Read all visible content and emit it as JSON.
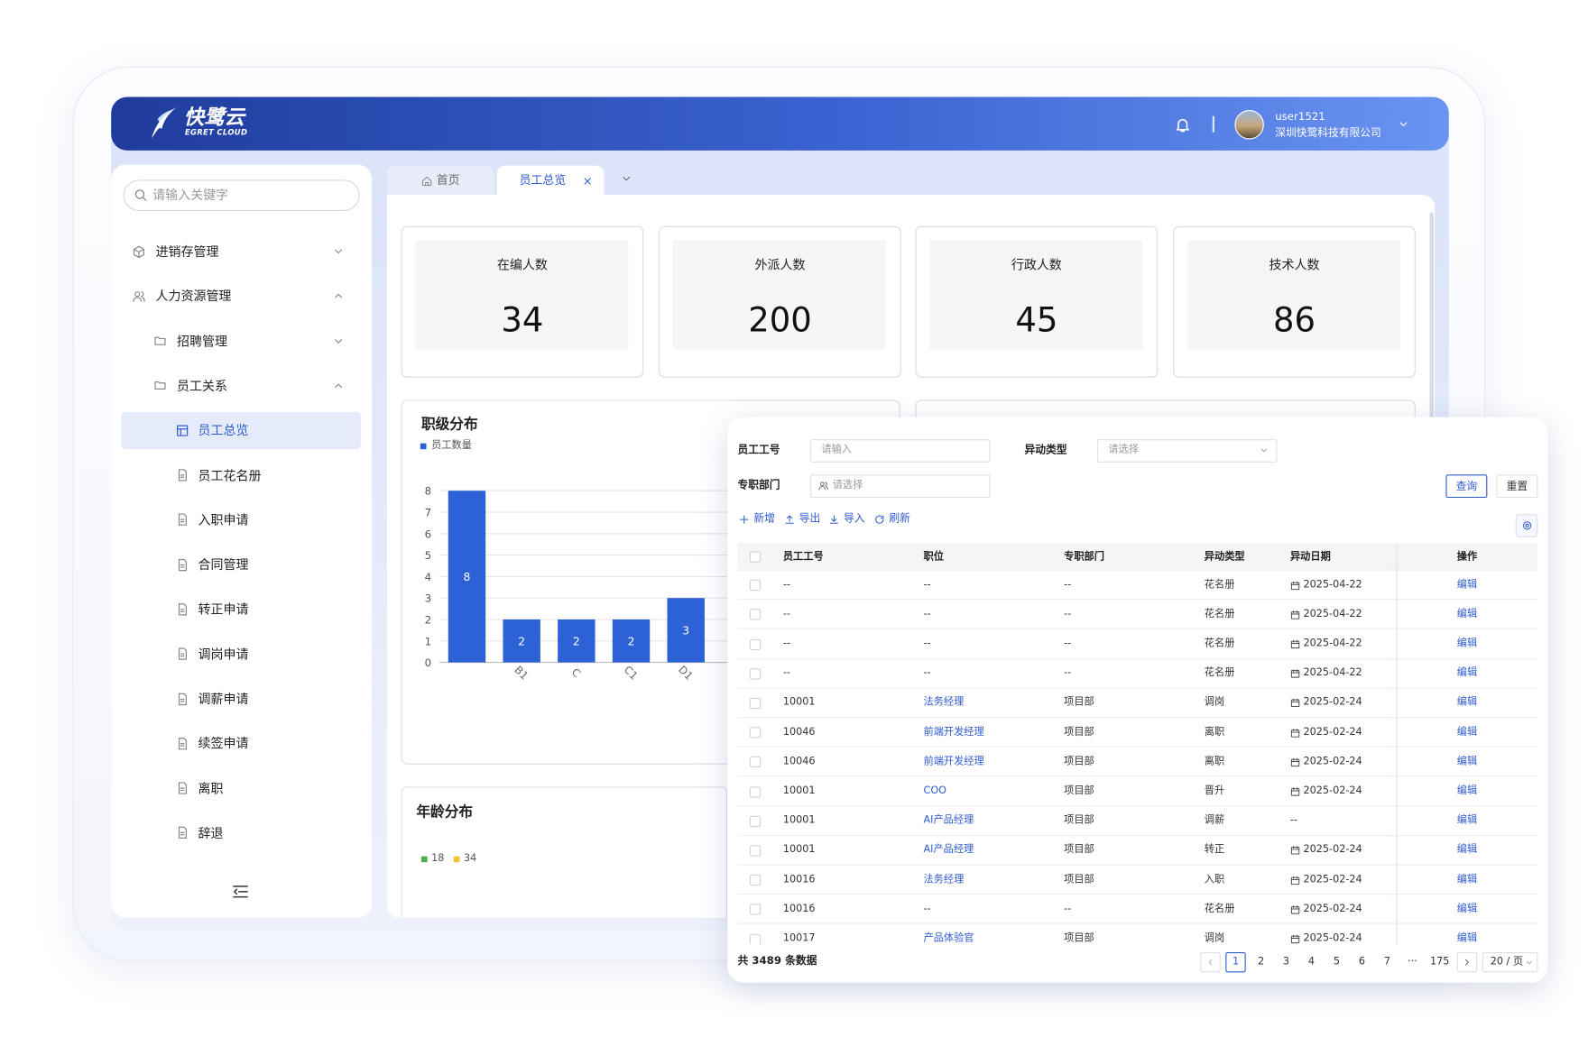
{
  "header": {
    "logo": "快鹭云",
    "logo_sub": "EGRET CLOUD",
    "user_name": "user1521",
    "company": "深圳快鹭科技有限公司"
  },
  "sidebar": {
    "search_placeholder": "请输入关键字",
    "menu": [
      {
        "label": "进销存管理",
        "level": 1,
        "open": false
      },
      {
        "label": "人力资源管理",
        "level": 1,
        "open": true
      },
      {
        "label": "招聘管理",
        "level": 2,
        "open": false
      },
      {
        "label": "员工关系",
        "level": 2,
        "open": true
      },
      {
        "label": "员工总览",
        "level": 3,
        "active": true
      },
      {
        "label": "员工花名册",
        "level": 3
      },
      {
        "label": "入职申请",
        "level": 3
      },
      {
        "label": "合同管理",
        "level": 3
      },
      {
        "label": "转正申请",
        "level": 3
      },
      {
        "label": "调岗申请",
        "level": 3
      },
      {
        "label": "调薪申请",
        "level": 3
      },
      {
        "label": "续签申请",
        "level": 3
      },
      {
        "label": "离职",
        "level": 3
      },
      {
        "label": "辞退",
        "level": 3
      }
    ]
  },
  "tabs": [
    {
      "label": "首页"
    },
    {
      "label": "员工总览",
      "active": true
    }
  ],
  "stat_cards": [
    {
      "label": "在编人数",
      "value": 34
    },
    {
      "label": "外派人数",
      "value": 200
    },
    {
      "label": "行政人数",
      "value": 45
    },
    {
      "label": "技术人数",
      "value": 86
    }
  ],
  "chart_data": [
    {
      "type": "bar",
      "title": "职级分布",
      "categories": [
        null,
        "B1",
        "C",
        "C1",
        "D1"
      ],
      "series": [
        {
          "name": "员工数量",
          "color": "#2d62d6",
          "values": [
            8,
            2,
            2,
            2,
            3
          ]
        }
      ],
      "ylim": [
        0,
        8
      ],
      "yticks": [
        0,
        1,
        2,
        3,
        4,
        5,
        6,
        7,
        8
      ],
      "grid": true
    },
    {
      "type": "pie",
      "title": "年龄分布",
      "categories": [
        "18",
        "34"
      ],
      "colors": [
        "#4caf50",
        "#f4c430"
      ]
    }
  ],
  "table_panel": {
    "filters": [
      {
        "label": "员工工号",
        "placeholder": "请输入"
      },
      {
        "label": "异动类型",
        "placeholder": "请选择"
      },
      {
        "label": "专职部门",
        "placeholder": "请选择"
      }
    ],
    "buttons": [
      "查询",
      "重置"
    ],
    "toolbar": [
      "新增",
      "导出",
      "导入",
      "刷新"
    ],
    "columns": [
      "员工工号",
      "职位",
      "专职部门",
      "异动类型",
      "异动日期",
      "操作"
    ],
    "rows": [
      [
        "--",
        "--",
        "--",
        "花名册",
        "2025-04-22",
        "编辑"
      ],
      [
        "--",
        "--",
        "--",
        "花名册",
        "2025-04-22",
        "编辑"
      ],
      [
        "--",
        "--",
        "--",
        "花名册",
        "2025-04-22",
        "编辑"
      ],
      [
        "--",
        "--",
        "--",
        "花名册",
        "2025-04-22",
        "编辑"
      ],
      [
        "10001",
        "法务经理",
        "项目部",
        "调岗",
        "2025-02-24",
        "编辑"
      ],
      [
        "10046",
        "前端开发经理",
        "项目部",
        "离职",
        "2025-02-24",
        "编辑"
      ],
      [
        "10046",
        "前端开发经理",
        "项目部",
        "离职",
        "2025-02-24",
        "编辑"
      ],
      [
        "10001",
        "COO",
        "项目部",
        "晋升",
        "2025-02-24",
        "编辑"
      ],
      [
        "10001",
        "AI产品经理",
        "项目部",
        "调薪",
        "--",
        "编辑"
      ],
      [
        "10001",
        "AI产品经理",
        "项目部",
        "转正",
        "2025-02-24",
        "编辑"
      ],
      [
        "10016",
        "法务经理",
        "项目部",
        "入职",
        "2025-02-24",
        "编辑"
      ],
      [
        "10016",
        "--",
        "--",
        "花名册",
        "2025-02-24",
        "编辑"
      ],
      [
        "10017",
        "产品体验官",
        "项目部",
        "调岗",
        "2025-02-24",
        "编辑"
      ]
    ],
    "total": "共 3489 条数据",
    "pages": [
      "1",
      "2",
      "3",
      "4",
      "5",
      "6",
      "7",
      "···",
      "175"
    ],
    "page_size": "20 / 页"
  }
}
